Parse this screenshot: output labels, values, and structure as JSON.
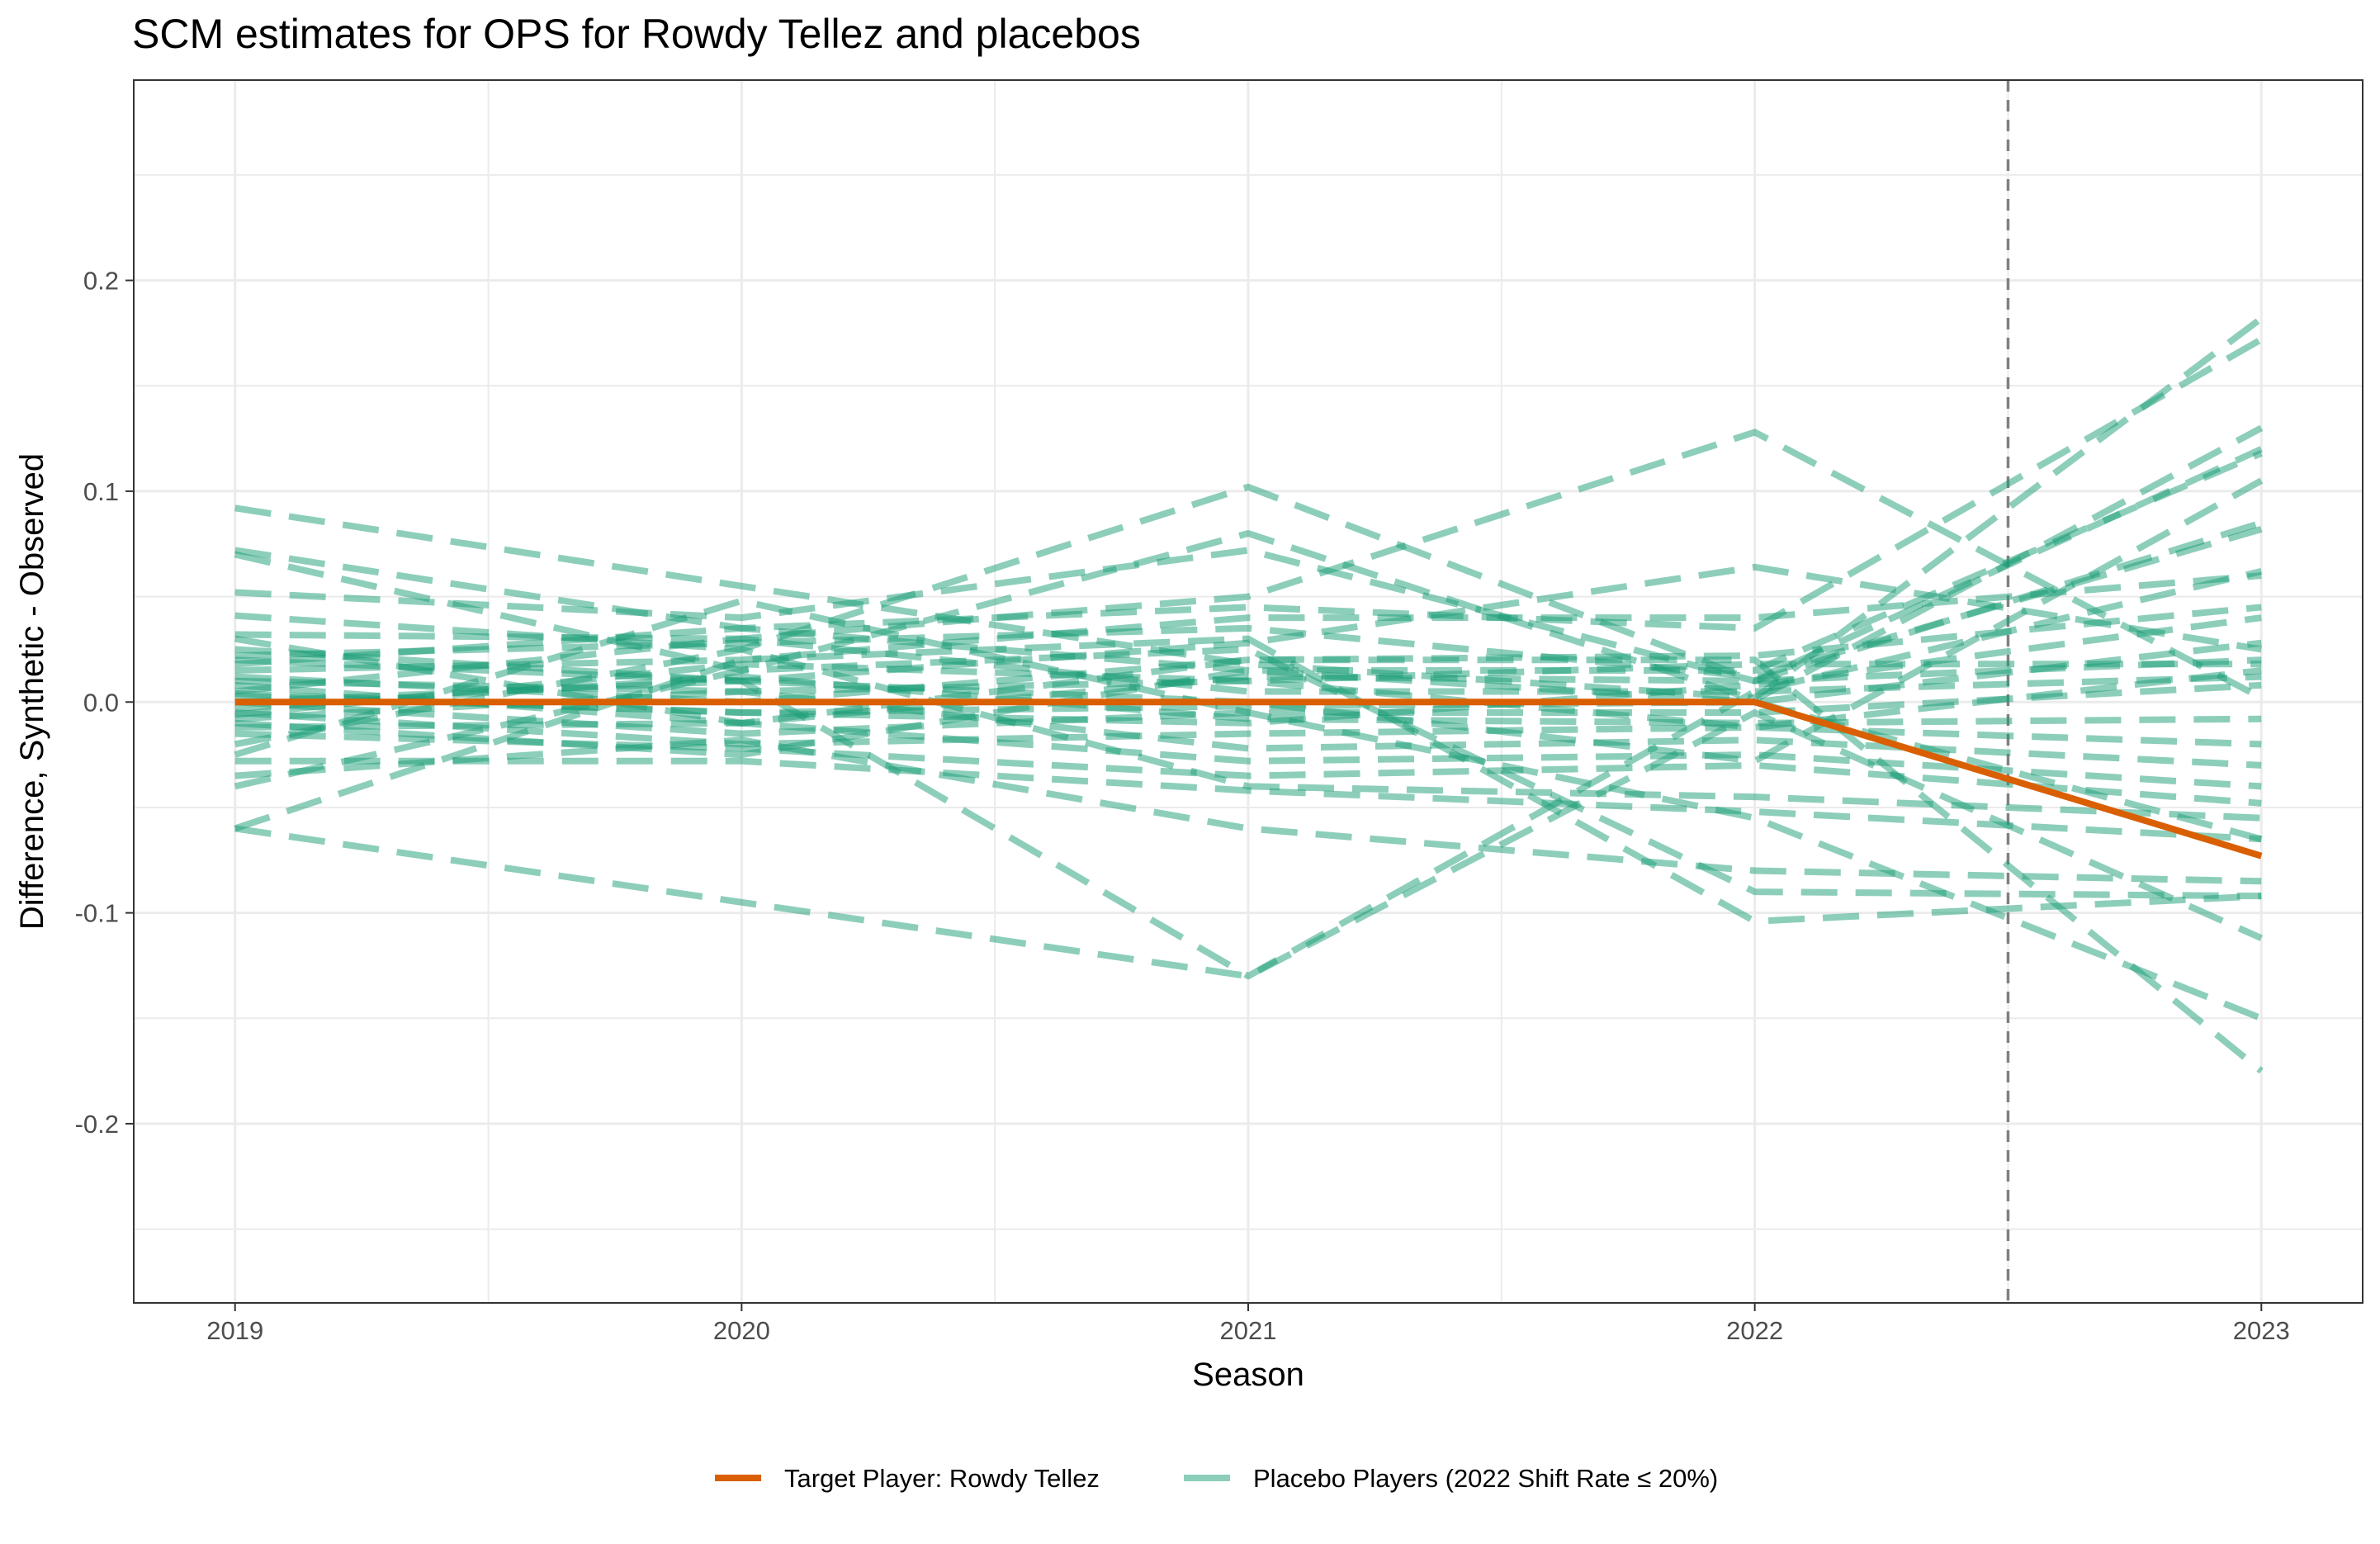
{
  "chart_data": {
    "type": "line",
    "title": "SCM estimates for OPS for Rowdy Tellez and placebos",
    "xlabel": "Season",
    "ylabel": "Difference, Synthetic - Observed",
    "x": [
      2019,
      2020,
      2021,
      2022,
      2023
    ],
    "x_ticks": [
      "2019",
      "2020",
      "2021",
      "2022",
      "2023"
    ],
    "y_ticks": [
      "-0.2",
      "-0.1",
      "0.0",
      "0.1",
      "0.2"
    ],
    "y_tick_values": [
      -0.2,
      -0.1,
      0.0,
      0.1,
      0.2
    ],
    "xlim": [
      2018.8,
      2023.2
    ],
    "ylim": [
      -0.285,
      0.295
    ],
    "vline_x": 2022.5,
    "grid": true,
    "legend_position": "bottom",
    "colors": {
      "target": "#D95F02",
      "placebo": "#1B9E77",
      "vline": "#808080",
      "grid": "#EBEBEB",
      "panel_border": "#333333"
    },
    "target_series": {
      "name": "Target Player: Rowdy Tellez",
      "values": [
        0.0,
        0.0,
        0.0,
        0.0,
        -0.073
      ]
    },
    "placebo_legend": "Placebo Players (2022 Shift Rate ≤ 20%)",
    "placebo_series": [
      {
        "values": [
          0.092,
          0.055,
          0.018,
          0.002,
          0.182
        ]
      },
      {
        "values": [
          0.072,
          0.035,
          0.045,
          0.035,
          0.172
        ]
      },
      {
        "values": [
          0.07,
          0.015,
          0.08,
          0.001,
          0.13
        ]
      },
      {
        "values": [
          0.052,
          0.04,
          0.072,
          0.01,
          0.12
        ]
      },
      {
        "values": [
          0.041,
          0.025,
          0.102,
          0.01,
          0.085
        ]
      },
      {
        "values": [
          0.032,
          0.03,
          0.05,
          0.128,
          0.002
        ]
      },
      {
        "values": [
          0.025,
          0.01,
          0.028,
          0.064,
          0.025
        ]
      },
      {
        "values": [
          0.02,
          0.01,
          -0.13,
          0.005,
          0.062
        ]
      },
      {
        "values": [
          0.015,
          0.02,
          0.04,
          0.04,
          0.06
        ]
      },
      {
        "values": [
          0.012,
          0.0,
          0.02,
          0.022,
          0.045
        ]
      },
      {
        "values": [
          0.01,
          0.005,
          0.01,
          0.018,
          0.018
        ]
      },
      {
        "values": [
          0.008,
          -0.01,
          0.012,
          0.01,
          0.02
        ]
      },
      {
        "values": [
          0.005,
          0.03,
          0.005,
          0.005,
          0.012
        ]
      },
      {
        "values": [
          0.003,
          -0.005,
          -0.002,
          0.0,
          0.028
        ]
      },
      {
        "values": [
          0.0,
          -0.015,
          -0.005,
          -0.005,
          0.008
        ]
      },
      {
        "values": [
          -0.003,
          0.012,
          -0.008,
          -0.01,
          -0.008
        ]
      },
      {
        "values": [
          -0.005,
          -0.02,
          -0.015,
          -0.012,
          -0.02
        ]
      },
      {
        "values": [
          -0.008,
          0.005,
          -0.022,
          -0.018,
          -0.03
        ]
      },
      {
        "values": [
          -0.012,
          -0.01,
          -0.028,
          -0.025,
          -0.04
        ]
      },
      {
        "values": [
          -0.015,
          -0.022,
          -0.035,
          -0.03,
          -0.048
        ]
      },
      {
        "values": [
          -0.02,
          0.025,
          -0.04,
          -0.045,
          -0.055
        ]
      },
      {
        "values": [
          -0.028,
          -0.028,
          -0.042,
          -0.052,
          -0.065
        ]
      },
      {
        "values": [
          -0.035,
          -0.018,
          -0.06,
          -0.08,
          -0.085
        ]
      },
      {
        "values": [
          -0.04,
          0.015,
          0.025,
          -0.09,
          -0.092
        ]
      },
      {
        "values": [
          -0.06,
          0.02,
          0.03,
          -0.104,
          -0.092
        ]
      },
      {
        "values": [
          -0.06,
          -0.095,
          -0.13,
          -0.005,
          -0.112
        ]
      },
      {
        "values": [
          -0.025,
          0.048,
          -0.005,
          -0.055,
          -0.15
        ]
      },
      {
        "values": [
          0.03,
          -0.01,
          0.02,
          0.02,
          -0.175
        ]
      },
      {
        "values": [
          0.018,
          0.035,
          0.015,
          0.0,
          -0.065
        ]
      },
      {
        "values": [
          -0.01,
          -0.025,
          0.015,
          0.015,
          0.118
        ]
      },
      {
        "values": [
          0.0,
          0.01,
          0.0,
          -0.028,
          0.105
        ]
      },
      {
        "values": [
          0.022,
          0.028,
          0.035,
          0.012,
          0.082
        ]
      },
      {
        "values": [
          0.004,
          -0.005,
          -0.01,
          0.008,
          0.04
        ]
      },
      {
        "values": [
          -0.006,
          0.018,
          0.01,
          -0.012,
          0.015
        ]
      }
    ]
  }
}
